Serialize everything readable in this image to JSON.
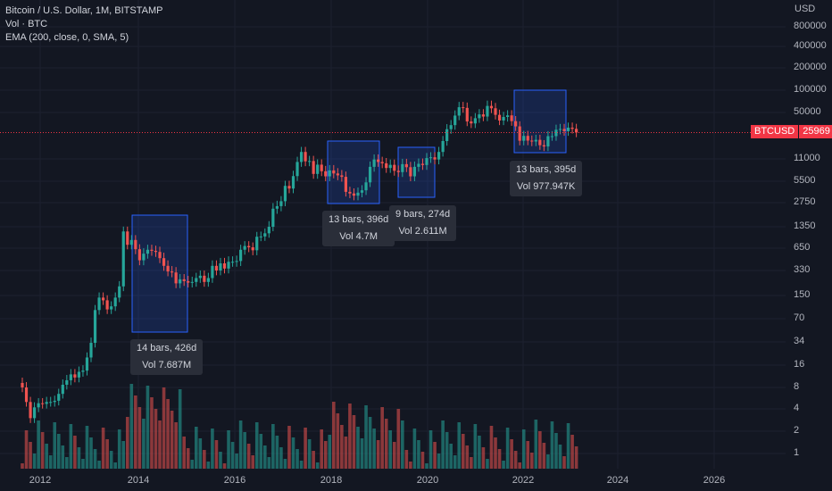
{
  "legend": {
    "symbol_line": "Bitcoin / U.S. Dollar, 1M, BITSTAMP",
    "volume_line": "Vol · BTC",
    "ema_line": "EMA (200, close, 0, SMA, 5)"
  },
  "price_axis": {
    "currency": "USD",
    "labels": [
      "800000",
      "400000",
      "200000",
      "100000",
      "50000",
      "11000",
      "5500",
      "2750",
      "1350",
      "650",
      "330",
      "150",
      "70",
      "34",
      "16",
      "8",
      "4",
      "2",
      "1"
    ]
  },
  "time_axis": {
    "labels": [
      "2012",
      "2014",
      "2016",
      "2018",
      "2020",
      "2022",
      "2024",
      "2026"
    ]
  },
  "price_tag": {
    "symbol": "BTCUSD",
    "value": "25969"
  },
  "measurements": [
    {
      "line1": "14 bars, 426d",
      "line2": "Vol 7.687M"
    },
    {
      "line1": "13 bars, 396d",
      "line2": "Vol 4.7M"
    },
    {
      "line1": "9 bars, 274d",
      "line2": "Vol 2.611M"
    },
    {
      "line1": "13 bars, 395d",
      "line2": "Vol 977.947K"
    }
  ],
  "colors": {
    "up": "#26a69a",
    "down": "#ef5350",
    "background": "#131722",
    "range_box": "#2962ff"
  },
  "chart_data": {
    "type": "candlestick",
    "scale": "log",
    "x_start": "2011-08",
    "interval": "1M",
    "close": [
      8,
      5,
      3,
      4.2,
      4.8,
      4.7,
      5,
      5,
      5.2,
      6.5,
      8.7,
      10,
      12,
      10.9,
      13,
      13.5,
      20.5,
      33,
      93,
      140,
      128,
      95,
      105,
      140,
      200,
      1150,
      730,
      860,
      630,
      450,
      550,
      620,
      600,
      580,
      480,
      380,
      320,
      310,
      220,
      250,
      236,
      225,
      230,
      260,
      280,
      230,
      260,
      380,
      330,
      410,
      350,
      430,
      430,
      440,
      620,
      700,
      670,
      610,
      960,
      970,
      1080,
      1350,
      2300,
      2480,
      2880,
      4730,
      4340,
      6450,
      10000,
      13800,
      10200,
      10300,
      6900,
      9200,
      7500,
      6400,
      7700,
      7000,
      6600,
      6300,
      3900,
      3700,
      3450,
      3800,
      4100,
      5300,
      8600,
      10800,
      10000,
      9600,
      8300,
      9150,
      7600,
      7300,
      9350,
      8500,
      6400,
      8600,
      9450,
      9100,
      11300,
      11600,
      10800,
      13800,
      19700,
      29000,
      33100,
      45200,
      58900,
      57700,
      37300,
      35000,
      41500,
      47000,
      43800,
      61300,
      57000,
      46300,
      38500,
      43200,
      45500,
      37700,
      31800,
      19900,
      23300,
      20000,
      19400,
      20500,
      17200,
      16500,
      23100,
      23100,
      28500,
      29200,
      27200,
      30500,
      29300,
      25969
    ],
    "annotations": [
      {
        "label": "14 bars, 426d",
        "volume": "Vol 7.687M"
      },
      {
        "label": "13 bars, 396d",
        "volume": "Vol 4.7M"
      },
      {
        "label": "9 bars, 274d",
        "volume": "Vol 2.611M"
      },
      {
        "label": "13 bars, 395d",
        "volume": "Vol 977.947K"
      }
    ],
    "last_price": 25969
  }
}
